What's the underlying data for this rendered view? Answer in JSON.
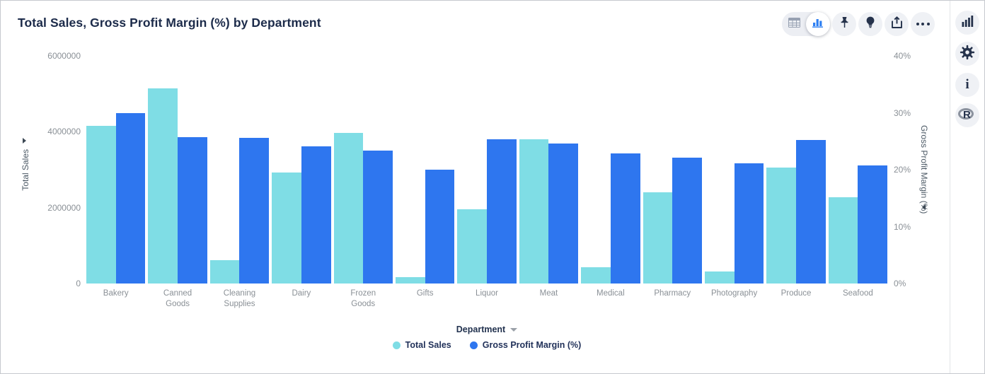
{
  "header": {
    "title": "Total Sales, Gross Profit Margin (%) by Department"
  },
  "toolbar": {
    "icons": [
      "table-view-icon",
      "chart-view-icon",
      "pin-icon",
      "lightbulb-icon",
      "export-icon",
      "more-options-icon"
    ],
    "selected_view": "chart"
  },
  "right_rail": {
    "icons": [
      "chart-type-icon",
      "settings-gear-icon",
      "info-icon",
      "r-logo-icon"
    ]
  },
  "colors": {
    "total_sales": "#7FDDE5",
    "gross_profit_margin": "#2E76EF",
    "title_text": "#1c2b4a",
    "axis_text": "#8a9096"
  },
  "chart_data": {
    "type": "bar",
    "title": "Total Sales, Gross Profit Margin (%) by Department",
    "categories": [
      "Bakery",
      "Canned Goods",
      "Cleaning Supplies",
      "Dairy",
      "Frozen Goods",
      "Gifts",
      "Liquor",
      "Meat",
      "Medical",
      "Pharmacy",
      "Photography",
      "Produce",
      "Seafood"
    ],
    "series": [
      {
        "name": "Total Sales",
        "axis": "left",
        "color": "#7FDDE5",
        "values": [
          4150000,
          5140000,
          610000,
          2920000,
          3970000,
          170000,
          1960000,
          3800000,
          430000,
          2410000,
          320000,
          3060000,
          2270000
        ]
      },
      {
        "name": "Gross Profit Margin (%)",
        "axis": "right",
        "color": "#2E76EF",
        "values": [
          30.0,
          25.7,
          25.6,
          24.1,
          23.4,
          20.0,
          25.3,
          24.6,
          22.8,
          22.1,
          21.1,
          25.2,
          20.8
        ]
      }
    ],
    "left_axis": {
      "label": "Total Sales",
      "max": 6000000,
      "ticks": [
        "6000000",
        "4000000",
        "2000000",
        "0"
      ]
    },
    "right_axis": {
      "label": "Gross Profit Margin (%)",
      "max": 40,
      "ticks": [
        "40%",
        "30%",
        "20%",
        "10%",
        "0%"
      ]
    },
    "xlabel": "Department",
    "legend": [
      "Total Sales",
      "Gross Profit Margin (%)"
    ],
    "legend_position": "bottom",
    "grid": false
  }
}
